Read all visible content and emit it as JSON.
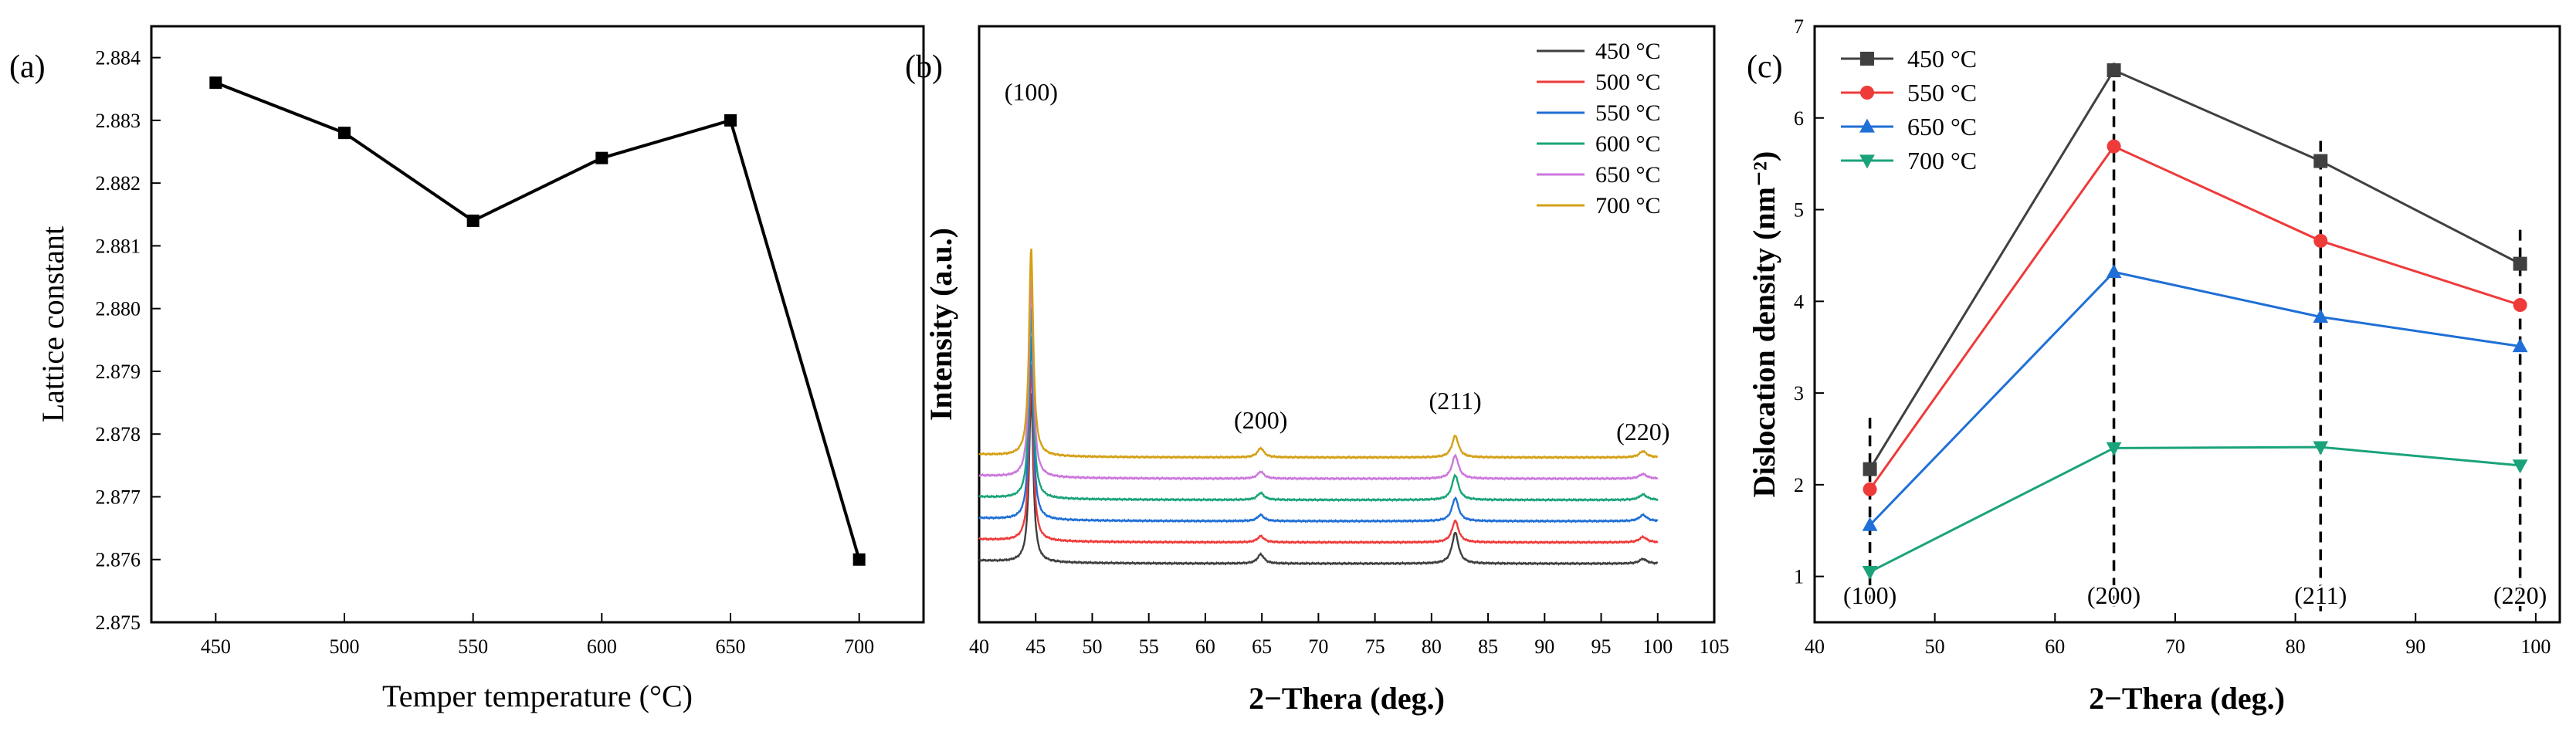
{
  "chart_data": [
    {
      "type": "line",
      "panel_label": "(a)",
      "xlabel": "Temper temperature (°C)",
      "ylabel": "Lattice constant",
      "xlim": [
        425,
        725
      ],
      "ylim": [
        2.875,
        2.8845
      ],
      "x_ticks": [
        "450",
        "500",
        "550",
        "600",
        "650",
        "700"
      ],
      "x_tick_values": [
        450,
        500,
        550,
        600,
        650,
        700
      ],
      "y_ticks": [
        "2.875",
        "2.876",
        "2.877",
        "2.878",
        "2.879",
        "2.880",
        "2.881",
        "2.882",
        "2.883",
        "2.884"
      ],
      "y_tick_values": [
        2.875,
        2.876,
        2.877,
        2.878,
        2.879,
        2.88,
        2.881,
        2.882,
        2.883,
        2.884
      ],
      "x": [
        450,
        500,
        550,
        600,
        650,
        700
      ],
      "y": [
        2.8836,
        2.8828,
        2.8814,
        2.8824,
        2.883,
        2.876
      ],
      "color": "#000000",
      "marker": "square"
    },
    {
      "type": "line",
      "panel_label": "(b)",
      "xlabel": "2−Thera (deg.)",
      "ylabel": "Intensity (a.u.)",
      "xlim": [
        40,
        105
      ],
      "x_ticks": [
        "40",
        "45",
        "50",
        "55",
        "60",
        "65",
        "70",
        "75",
        "80",
        "85",
        "90",
        "95",
        "100",
        "105"
      ],
      "x_tick_values": [
        40,
        45,
        50,
        55,
        60,
        65,
        70,
        75,
        80,
        85,
        90,
        95,
        100,
        105
      ],
      "x_range": [
        40,
        100
      ],
      "peak_positions": [
        44.6,
        64.9,
        82.1,
        98.7
      ],
      "peak_labels": [
        "(100)",
        "(200)",
        "(211)",
        "(220)"
      ],
      "series": [
        {
          "name": "450 °C",
          "color": "#3f3f3f",
          "baseline": 0.0,
          "peak_heights": [
            220,
            12,
            40,
            6
          ]
        },
        {
          "name": "500 °C",
          "color": "#ef3a3a",
          "baseline": 1.0,
          "peak_heights": [
            230,
            8,
            28,
            7
          ]
        },
        {
          "name": "550 °C",
          "color": "#1f6fd6",
          "baseline": 2.0,
          "peak_heights": [
            240,
            8,
            30,
            8
          ]
        },
        {
          "name": "600 °C",
          "color": "#1aa37a",
          "baseline": 3.0,
          "peak_heights": [
            250,
            9,
            32,
            7
          ]
        },
        {
          "name": "650 °C",
          "color": "#cc77dd",
          "baseline": 4.0,
          "peak_heights": [
            260,
            9,
            30,
            6
          ]
        },
        {
          "name": "700 °C",
          "color": "#d4a017",
          "baseline": 5.0,
          "peak_heights": [
            270,
            12,
            28,
            8
          ]
        }
      ]
    },
    {
      "type": "line",
      "panel_label": "(c)",
      "xlabel": "2−Thera (deg.)",
      "ylabel": "Dislocation density (nm⁻²)",
      "xlim": [
        40,
        102
      ],
      "ylim": [
        0.5,
        7
      ],
      "x_ticks": [
        "40",
        "50",
        "60",
        "70",
        "80",
        "90",
        "100"
      ],
      "x_tick_values": [
        40,
        50,
        60,
        70,
        80,
        90,
        100
      ],
      "y_ticks": [
        "1",
        "2",
        "3",
        "4",
        "5",
        "6",
        "7"
      ],
      "y_tick_values": [
        1,
        2,
        3,
        4,
        5,
        6,
        7
      ],
      "x": [
        44.6,
        64.9,
        82.1,
        98.7
      ],
      "plane_labels": [
        "(100)",
        "(200)",
        "(211)",
        "(220)"
      ],
      "series": [
        {
          "name": "450 °C",
          "color": "#404040",
          "marker": "square",
          "values": [
            2.17,
            6.52,
            5.53,
            4.41
          ]
        },
        {
          "name": "550 °C",
          "color": "#ef3a3a",
          "marker": "circle",
          "values": [
            1.95,
            5.69,
            4.66,
            3.96
          ]
        },
        {
          "name": "650 °C",
          "color": "#1f6fd6",
          "marker": "triangle",
          "values": [
            1.56,
            4.32,
            3.83,
            3.51
          ]
        },
        {
          "name": "700 °C",
          "color": "#1aa37a",
          "marker": "triangle-down",
          "values": [
            1.05,
            2.4,
            2.41,
            2.21
          ]
        }
      ]
    }
  ]
}
